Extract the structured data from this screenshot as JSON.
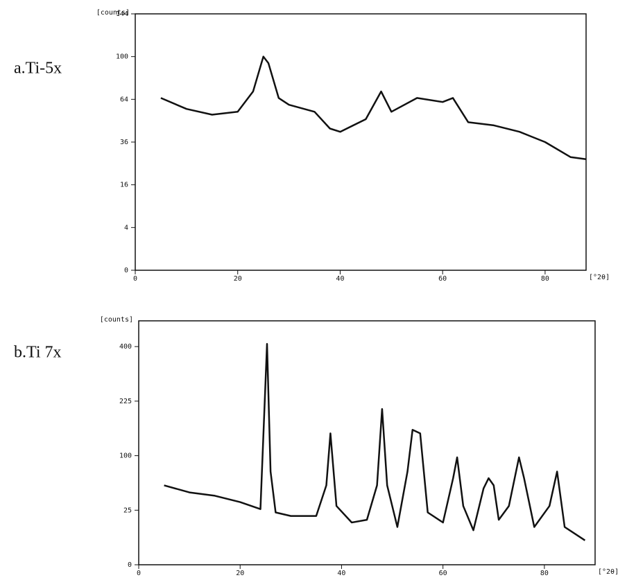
{
  "chart_data": [
    {
      "type": "line",
      "title": "a.Ti-5x",
      "y_label": "[counts]",
      "x_label": "[°2θ]",
      "yscale": "sqrt",
      "xlim": [
        0,
        88
      ],
      "ylim": [
        0,
        144
      ],
      "xticks": [
        0,
        20,
        40,
        60,
        80
      ],
      "yticks": [
        0,
        4,
        16,
        36,
        64,
        100,
        144
      ],
      "series": [
        {
          "color": "#111111",
          "x": [
            5,
            10,
            15,
            20,
            23,
            25,
            26,
            28,
            30,
            35,
            38,
            40,
            45,
            48,
            50,
            55,
            60,
            62,
            65,
            70,
            75,
            80,
            85,
            88
          ],
          "values": [
            65,
            57,
            53,
            55,
            70,
            100,
            94,
            65,
            60,
            55,
            44,
            42,
            50,
            70,
            55,
            65,
            62,
            65,
            48,
            46,
            42,
            36,
            28,
            27
          ]
        }
      ]
    },
    {
      "type": "line",
      "title": "b.Ti 7x",
      "y_label": "[counts]",
      "x_label": "[°2θ]",
      "yscale": "sqrt",
      "xlim": [
        0,
        90
      ],
      "ylim": [
        0,
        500
      ],
      "xticks": [
        0,
        20,
        40,
        60,
        80
      ],
      "yticks": [
        0,
        25,
        100,
        225,
        400
      ],
      "series": [
        {
          "color": "#111111",
          "x": [
            5,
            10,
            15,
            20,
            24,
            25.3,
            26,
            27,
            30,
            35,
            37,
            37.8,
            39,
            42,
            45,
            47,
            48,
            49,
            51,
            53,
            54,
            55.5,
            57,
            60,
            62,
            62.8,
            64,
            66,
            68,
            69,
            70,
            71,
            73,
            75,
            76,
            78,
            81,
            82.5,
            84,
            88
          ],
          "values": [
            53,
            44,
            40,
            33,
            26,
            410,
            73,
            23,
            20,
            20,
            53,
            145,
            29,
            15,
            17,
            53,
            204,
            53,
            12,
            73,
            153,
            145,
            23,
            15,
            63,
            97,
            29,
            10,
            49,
            63,
            53,
            17,
            29,
            97,
            63,
            12,
            29,
            73,
            12,
            5
          ]
        }
      ]
    }
  ]
}
